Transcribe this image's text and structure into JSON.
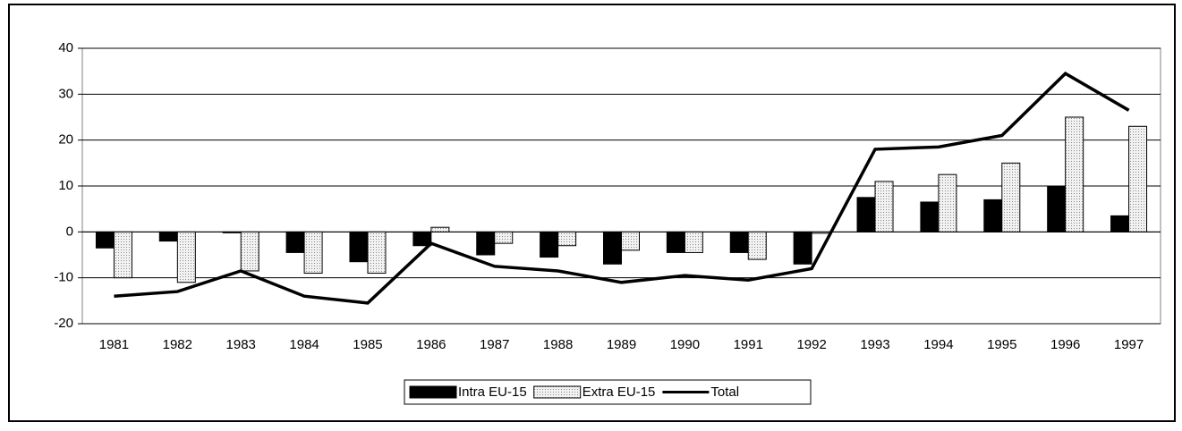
{
  "chart_data": {
    "type": "bar-line",
    "categories": [
      "1981",
      "1982",
      "1983",
      "1984",
      "1985",
      "1986",
      "1987",
      "1988",
      "1989",
      "1990",
      "1991",
      "1992",
      "1993",
      "1994",
      "1995",
      "1996",
      "1997"
    ],
    "series": [
      {
        "name": "Intra EU-15",
        "type": "bar",
        "color": "#000000",
        "values": [
          -3.5,
          -2,
          -0.2,
          -4.5,
          -6.5,
          -3,
          -5,
          -5.5,
          -7,
          -4.5,
          -4.5,
          -7,
          7.5,
          6.5,
          7,
          10,
          3.5
        ]
      },
      {
        "name": "Extra EU-15",
        "type": "bar",
        "color": "#dcdcdc",
        "values": [
          -10,
          -11,
          -8.5,
          -9,
          -9,
          1,
          -2.5,
          -3,
          -4,
          -4.5,
          -6,
          -0.3,
          11,
          12.5,
          15,
          25,
          23
        ]
      },
      {
        "name": "Total",
        "type": "line",
        "color": "#000000",
        "values": [
          -14,
          -13,
          -8.5,
          -14,
          -15.5,
          -2.5,
          -7.5,
          -8.5,
          -11,
          -9.5,
          -10.5,
          -8,
          18,
          18.5,
          21,
          34.5,
          26.5
        ]
      }
    ],
    "ylim": [
      -20,
      40
    ],
    "yticks": [
      -20,
      -10,
      0,
      10,
      20,
      30,
      40
    ],
    "grid": true,
    "legend": "bottom"
  }
}
